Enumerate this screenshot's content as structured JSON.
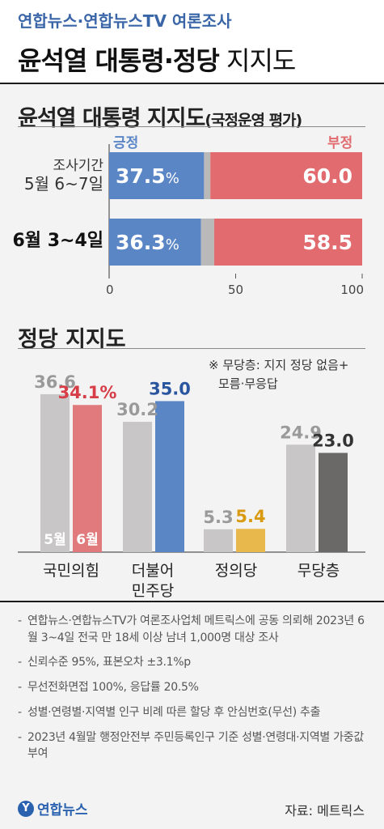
{
  "header": {
    "source_line": "연합뉴스·연합뉴스TV 여론조사",
    "headline_bold": "윤석열 대통령·정당",
    "headline_light": " 지지도"
  },
  "section1": {
    "title": "윤석열 대통령 지지도",
    "subtitle": "(국정운영 평가)",
    "positive_label": "긍정",
    "negative_label": "부정",
    "row1_label_line1": "조사기간",
    "row1_label_line2": "5월 6~7일",
    "row2_label": "6월 3~4일"
  },
  "section2": {
    "title": "정당 지지도",
    "note_line1": "※ 무당층: 지지 정당 없음+",
    "note_line2": "모름·무응답",
    "month_may": "5월",
    "month_june": "6월"
  },
  "chart_data": [
    {
      "type": "bar",
      "orientation": "horizontal",
      "stacked": true,
      "title": "윤석열 대통령 지지도",
      "subtitle": "(국정운영 평가)",
      "categories": [
        "5월 6~7일",
        "6월 3~4일"
      ],
      "series": [
        {
          "name": "긍정",
          "values": [
            37.5,
            36.3
          ],
          "labels": [
            "37.5%",
            "36.3%"
          ],
          "color": "#5b86c6"
        },
        {
          "name": "",
          "values": [
            2.5,
            5.2
          ],
          "color": "#b9b9b9"
        },
        {
          "name": "부정",
          "values": [
            60.0,
            58.5
          ],
          "labels": [
            "60.0",
            "58.5"
          ],
          "color": "#e16b6e"
        }
      ],
      "xlim": [
        0,
        100
      ],
      "xticks": [
        "0",
        "50",
        "100"
      ]
    },
    {
      "type": "bar",
      "orientation": "vertical",
      "title": "정당 지지도",
      "categories": [
        "국민의힘",
        "더불어 민주당",
        "정의당",
        "무당층"
      ],
      "series": [
        {
          "name": "5월",
          "values": [
            36.6,
            30.2,
            5.3,
            24.9
          ],
          "labels": [
            "36.6",
            "30.2",
            "5.3",
            "24.9"
          ],
          "color": "#c8c6c6"
        },
        {
          "name": "6월",
          "values": [
            34.1,
            35.0,
            5.4,
            23.0
          ],
          "labels": [
            "34.1%",
            "35.0",
            "5.4",
            "23.0"
          ],
          "colors": [
            "#e07a7c",
            "#5b86c6",
            "#e8b84c",
            "#6b6868"
          ],
          "label_colors": [
            "#d63d46",
            "#2a56a0",
            "#d99a12",
            "#333333"
          ]
        }
      ],
      "ylim": [
        0,
        40
      ]
    }
  ],
  "notes": [
    "연합뉴스·연합뉴스TV가 여론조사업체 메트릭스에 공동 의뢰해 2023년 6월 3~4일 전국 만 18세 이상 남녀 1,000명 대상 조사",
    "신뢰수준 95%, 표본오차 ±3.1%p",
    "무선전화면접 100%, 응답률 20.5%",
    "성별·연령별·지역별 인구 비례 따른 할당 후 안심번호(무선) 추출",
    "2023년 4월말 행정안전부 주민등록인구 기준 성별·연령대·지역별 가중값 부여"
  ],
  "footer": {
    "logo_mark": "Y",
    "logo_text": "연합뉴스",
    "credit": "자료: 메트릭스"
  }
}
